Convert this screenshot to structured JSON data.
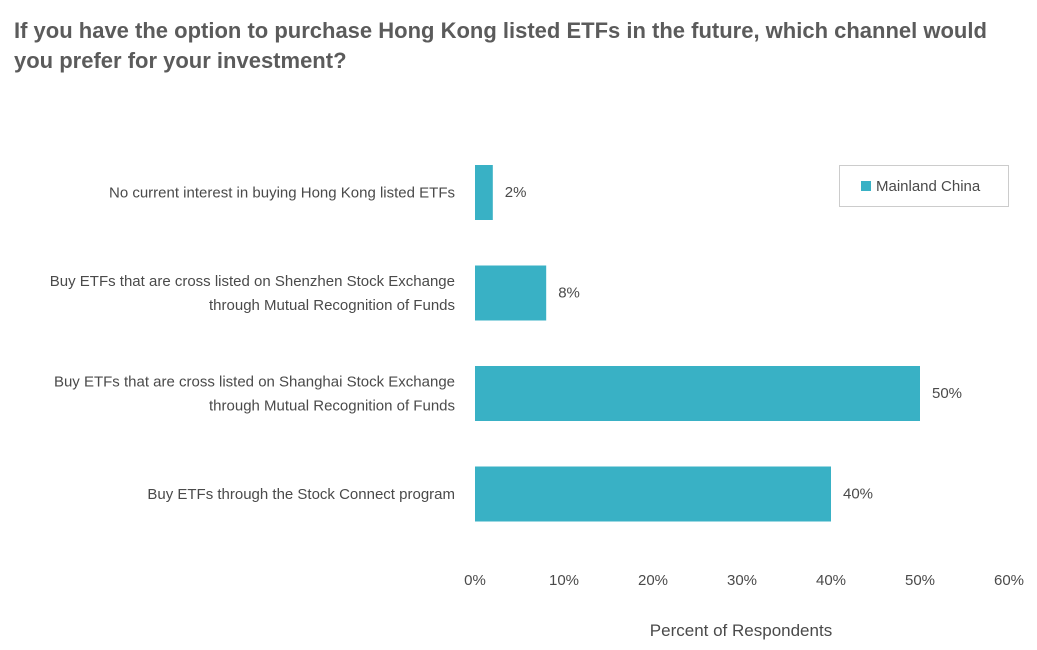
{
  "chart_data": {
    "type": "bar",
    "orientation": "horizontal",
    "title": "If you have the option to purchase Hong Kong listed ETFs in the future, which channel would you prefer for your investment?",
    "xlabel": "Percent of Respondents",
    "ylabel": "",
    "xlim": [
      0,
      60
    ],
    "xticks": [
      0,
      10,
      20,
      30,
      40,
      50,
      60
    ],
    "tick_suffix": "%",
    "grid": false,
    "legend_position": "top-right",
    "categories": [
      [
        "No current interest in buying Hong Kong listed ETFs"
      ],
      [
        "Buy ETFs that are cross listed on Shenzhen Stock Exchange",
        "through Mutual Recognition of Funds"
      ],
      [
        "Buy ETFs that are cross listed on Shanghai Stock Exchange",
        "through Mutual Recognition of Funds"
      ],
      [
        "Buy ETFs through the Stock Connect program"
      ]
    ],
    "series": [
      {
        "name": "Mainland China",
        "color": "#39b1c5",
        "values": [
          2,
          8,
          50,
          40
        ]
      }
    ]
  }
}
